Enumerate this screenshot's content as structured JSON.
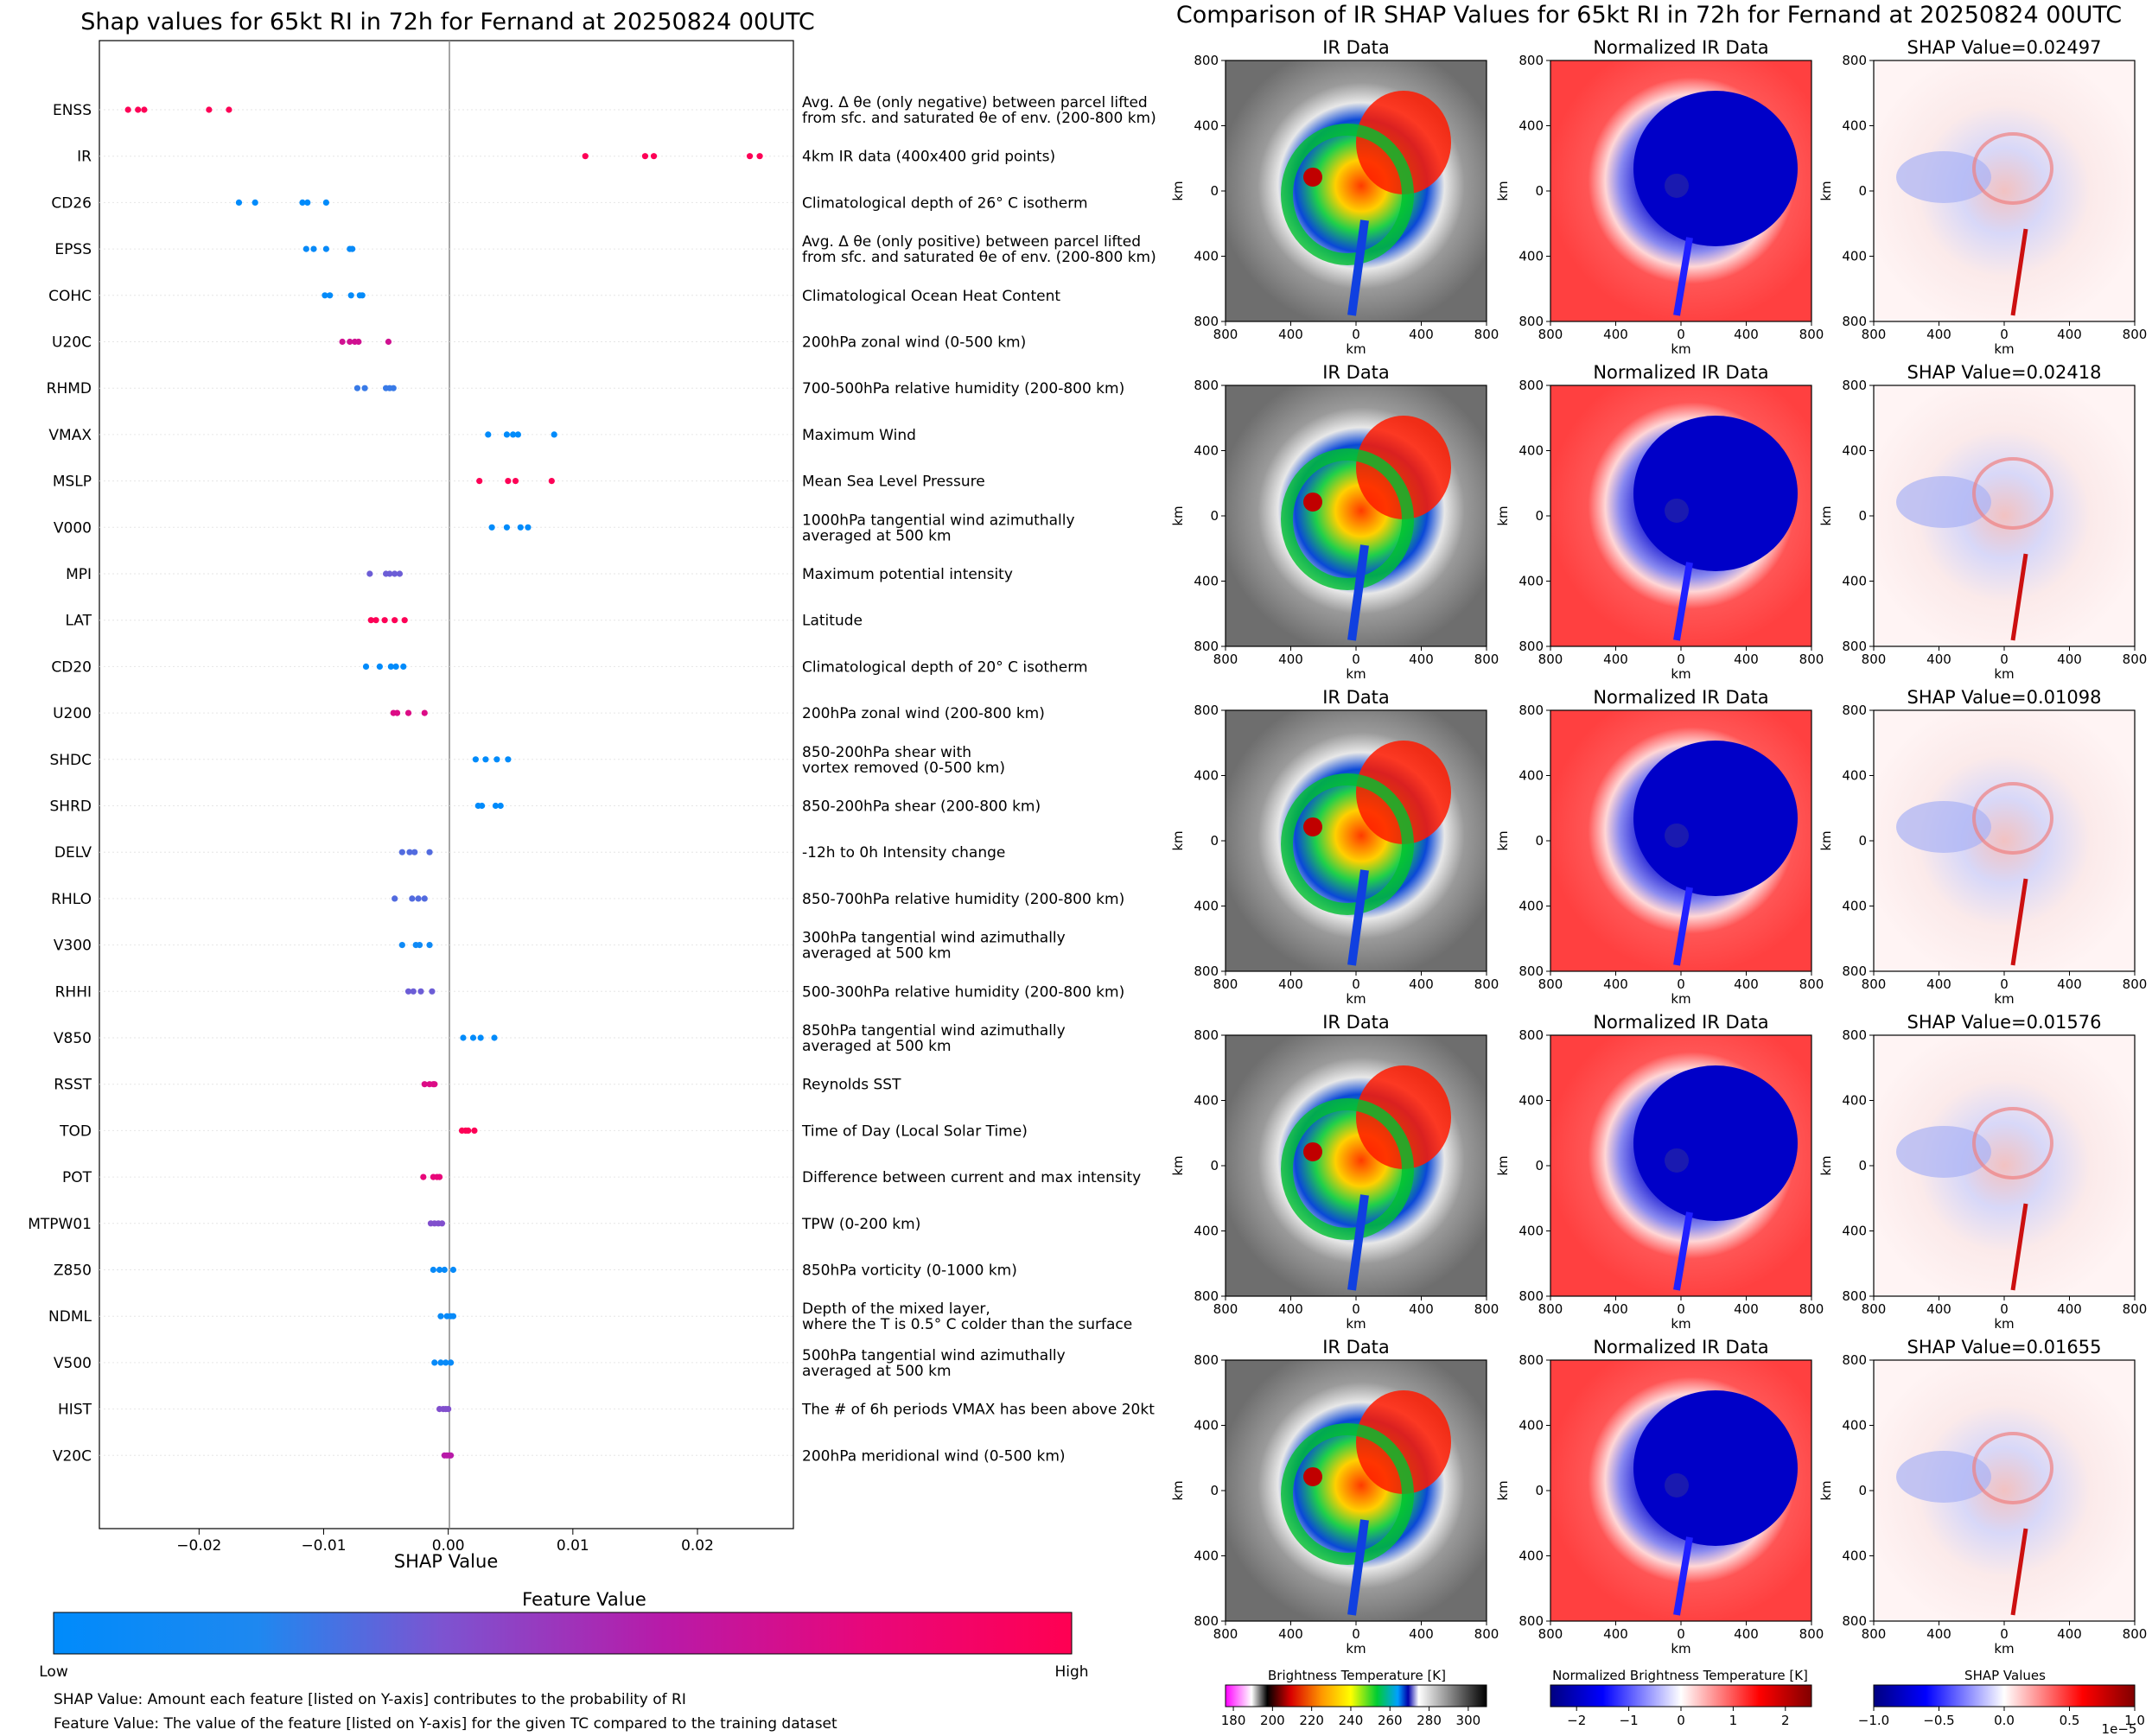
{
  "left": {
    "title": "Shap values for 65kt RI in 72h for Fernand at 20250824 00UTC",
    "xlabel": "SHAP Value",
    "colorbar": {
      "title": "Feature Value",
      "low_label": "Low",
      "high_label": "High",
      "low_color": "#008bfb",
      "high_color": "#ff0052"
    },
    "footnotes": [
      "SHAP Value: Amount each feature [listed on Y-axis] contributes to the probability of RI",
      "Feature Value: The value of the feature [listed on Y-axis] for the given TC compared to the training dataset"
    ]
  },
  "right": {
    "title": "Comparison of IR SHAP Values for 65kt RI in 72h for Fernand at 20250824 00UTC",
    "col1_title": "IR Data",
    "col2_title": "Normalized IR Data",
    "shap_titles": [
      "SHAP Value=0.02497",
      "SHAP Value=0.02418",
      "SHAP Value=0.01098",
      "SHAP Value=0.01576",
      "SHAP Value=0.01655"
    ],
    "axis_label": "km",
    "ticks": [
      "800",
      "400",
      "0",
      "400",
      "800"
    ],
    "colorbars": [
      {
        "title": "Brightness Temperature [K]",
        "ticks": [
          "180",
          "200",
          "220",
          "240",
          "260",
          "280",
          "300"
        ]
      },
      {
        "title": "Normalized Brightness Temperature [K]",
        "ticks": [
          "−2",
          "−1",
          "0",
          "1",
          "2"
        ]
      },
      {
        "title": "SHAP Values",
        "ticks": [
          "−1.0",
          "−0.5",
          "0.0",
          "0.5",
          "1.0"
        ],
        "multiplier": "1e−5"
      }
    ]
  },
  "chart_data": {
    "type": "scatter",
    "subtype": "shap-beeswarm",
    "xlim": [
      -0.028,
      0.0277
    ],
    "xticks": [
      -0.02,
      -0.01,
      0.0,
      0.01,
      0.02
    ],
    "xtick_labels": [
      "−0.02",
      "−0.01",
      "0.00",
      "0.01",
      "0.02"
    ],
    "features": [
      {
        "name": "ENSS",
        "desc": [
          "Avg. Δ θe (only negative) between parcel lifted",
          "from sfc. and saturated θe of env. (200-800 km)"
        ],
        "values": [
          -0.0257,
          -0.0249,
          -0.0244,
          -0.0192,
          -0.0176
        ],
        "level": 0.98
      },
      {
        "name": "IR",
        "desc": [
          "4km IR data (400x400 grid points)"
        ],
        "values": [
          0.011,
          0.0158,
          0.0165,
          0.0242,
          0.025
        ],
        "level": 0.98
      },
      {
        "name": "CD26",
        "desc": [
          "Climatological depth of 26° C isotherm"
        ],
        "values": [
          -0.0168,
          -0.0155,
          -0.0117,
          -0.0113,
          -0.0098
        ],
        "level": 0.0
      },
      {
        "name": "EPSS",
        "desc": [
          "Avg. Δ θe (only positive) between parcel lifted",
          "from sfc. and saturated θe of env. (200-800 km)"
        ],
        "values": [
          -0.0114,
          -0.0108,
          -0.0098,
          -0.0079,
          -0.0077
        ],
        "level": 0.05
      },
      {
        "name": "COHC",
        "desc": [
          "Climatological Ocean Heat Content"
        ],
        "values": [
          -0.0099,
          -0.0095,
          -0.0078,
          -0.0071,
          -0.0069
        ],
        "level": 0.03
      },
      {
        "name": "U20C",
        "desc": [
          "200hPa zonal wind (0-500 km)"
        ],
        "values": [
          -0.0085,
          -0.0079,
          -0.0075,
          -0.0072,
          -0.0048
        ],
        "level": 0.7
      },
      {
        "name": "RHMD",
        "desc": [
          "700-500hPa relative humidity (200-800 km)"
        ],
        "values": [
          -0.0073,
          -0.0067,
          -0.005,
          -0.0047,
          -0.0044
        ],
        "level": 0.25
      },
      {
        "name": "VMAX",
        "desc": [
          "Maximum Wind"
        ],
        "values": [
          0.0032,
          0.0047,
          0.0052,
          0.0056,
          0.0085
        ],
        "level": 0.0
      },
      {
        "name": "MSLP",
        "desc": [
          "Mean Sea Level Pressure"
        ],
        "values": [
          0.0025,
          0.0048,
          0.0054,
          0.0083
        ],
        "level": 0.98
      },
      {
        "name": "V000",
        "desc": [
          "1000hPa tangential wind azimuthally",
          "averaged at 500 km"
        ],
        "values": [
          0.0035,
          0.0047,
          0.0058,
          0.0064
        ],
        "level": 0.0
      },
      {
        "name": "MPI",
        "desc": [
          "Maximum potential intensity"
        ],
        "values": [
          -0.0063,
          -0.005,
          -0.0047,
          -0.0043,
          -0.0039
        ],
        "level": 0.35
      },
      {
        "name": "LAT",
        "desc": [
          "Latitude"
        ],
        "values": [
          -0.0062,
          -0.0058,
          -0.0051,
          -0.0043,
          -0.0035
        ],
        "level": 0.98
      },
      {
        "name": "CD20",
        "desc": [
          "Climatological depth of 20° C isotherm"
        ],
        "values": [
          -0.0066,
          -0.0055,
          -0.0046,
          -0.0042,
          -0.0036
        ],
        "level": 0.0
      },
      {
        "name": "U200",
        "desc": [
          "200hPa zonal wind (200-800 km)"
        ],
        "values": [
          -0.0044,
          -0.0041,
          -0.0032,
          -0.0019
        ],
        "level": 0.75
      },
      {
        "name": "SHDC",
        "desc": [
          "850-200hPa shear with",
          "vortex removed (0-500 km)"
        ],
        "values": [
          0.0022,
          0.003,
          0.0039,
          0.0048
        ],
        "level": 0.0
      },
      {
        "name": "SHRD",
        "desc": [
          "850-200hPa shear (200-800 km)"
        ],
        "values": [
          0.0024,
          0.0027,
          0.0038,
          0.0042
        ],
        "level": 0.0
      },
      {
        "name": "DELV",
        "desc": [
          "-12h to 0h Intensity change"
        ],
        "values": [
          -0.0037,
          -0.0031,
          -0.0027,
          -0.0015
        ],
        "level": 0.3
      },
      {
        "name": "RHLO",
        "desc": [
          "850-700hPa relative humidity (200-800 km)"
        ],
        "values": [
          -0.0043,
          -0.0029,
          -0.0024,
          -0.0019
        ],
        "level": 0.3
      },
      {
        "name": "V300",
        "desc": [
          "300hPa tangential wind azimuthally",
          "averaged at 500 km"
        ],
        "values": [
          -0.0037,
          -0.0026,
          -0.0023,
          -0.0015
        ],
        "level": 0.1
      },
      {
        "name": "RHHI",
        "desc": [
          "500-300hPa relative humidity (200-800 km)"
        ],
        "values": [
          -0.0032,
          -0.0028,
          -0.0022,
          -0.0013
        ],
        "level": 0.35
      },
      {
        "name": "V850",
        "desc": [
          "850hPa tangential wind azimuthally",
          "averaged at 500 km"
        ],
        "values": [
          0.0012,
          0.002,
          0.0026,
          0.0037
        ],
        "level": 0.0
      },
      {
        "name": "RSST",
        "desc": [
          "Reynolds SST"
        ],
        "values": [
          -0.0019,
          -0.0015,
          -0.0012,
          -0.0011
        ],
        "level": 0.75
      },
      {
        "name": "TOD",
        "desc": [
          "Time of Day (Local Solar Time)"
        ],
        "values": [
          0.0011,
          0.0014,
          0.0016,
          0.0021
        ],
        "level": 0.98
      },
      {
        "name": "POT",
        "desc": [
          "Difference between current and max intensity"
        ],
        "values": [
          -0.002,
          -0.0012,
          -0.0009,
          -0.0007
        ],
        "level": 0.8
      },
      {
        "name": "MTPW01",
        "desc": [
          "TPW (0-200 km)"
        ],
        "values": [
          -0.0014,
          -0.0011,
          -0.0008,
          -0.0005
        ],
        "level": 0.4
      },
      {
        "name": "Z850",
        "desc": [
          "850hPa vorticity (0-1000 km)"
        ],
        "values": [
          -0.0012,
          -0.0007,
          -0.0003,
          0.0004
        ],
        "level": 0.05
      },
      {
        "name": "NDML",
        "desc": [
          "Depth of the mixed layer,",
          "where the T is 0.5° C colder than the surface"
        ],
        "values": [
          -0.0006,
          -0.0001,
          0.0002,
          0.0004
        ],
        "level": 0.05
      },
      {
        "name": "V500",
        "desc": [
          "500hPa tangential wind azimuthally",
          "averaged at 500 km"
        ],
        "values": [
          -0.0011,
          -0.0006,
          -0.0002,
          0.0002
        ],
        "level": 0.05
      },
      {
        "name": "HIST",
        "desc": [
          "The # of 6h periods VMAX has been above 20kt"
        ],
        "values": [
          -0.0007,
          -0.0004,
          -0.0002,
          0.0
        ],
        "level": 0.4
      },
      {
        "name": "V20C",
        "desc": [
          "200hPa meridional wind (0-500 km)"
        ],
        "values": [
          -0.0003,
          -0.0001,
          0.0001,
          0.0002
        ],
        "level": 0.6
      }
    ]
  }
}
